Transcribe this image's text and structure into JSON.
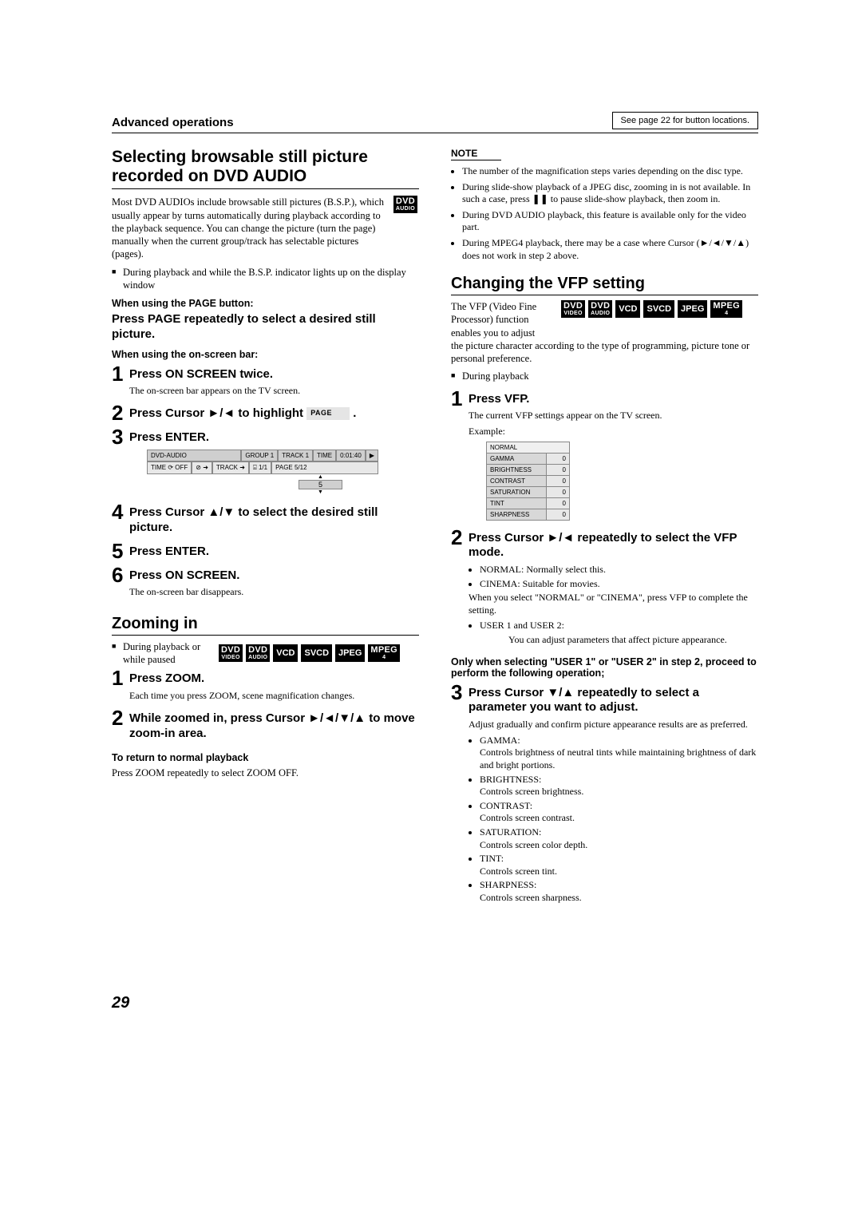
{
  "header": {
    "section_label": "Advanced operations",
    "button_ref": "See page 22 for button locations."
  },
  "left": {
    "h1": "Selecting browsable still picture recorded on DVD AUDIO",
    "badge_dvdaudio": {
      "top": "DVD",
      "bot": "AUDIO"
    },
    "intro": "Most DVD AUDIOs include browsable still pictures (B.S.P.), which usually appear by turns automatically during playback according to the playback sequence. You can change the picture (turn the page) manually when the current group/track has selectable pictures (pages).",
    "bullet1": "During playback and while the B.S.P. indicator lights up on the display window",
    "when_page": "When using the PAGE button:",
    "inst_page": "Press PAGE repeatedly to select a desired still picture.",
    "when_osb": "When using the on-screen bar:",
    "s1": {
      "t": "Press ON SCREEN twice.",
      "s": "The on-screen bar appears on the TV screen."
    },
    "s2": {
      "pre": "Press Cursor ►/◄ to highlight ",
      "page_badge": "PAGE",
      "post": "."
    },
    "s3": {
      "t": "Press ENTER."
    },
    "osd": {
      "r1": [
        "DVD-AUDIO",
        "GROUP 1",
        "TRACK 1",
        "TIME",
        "0:01:40",
        "▶"
      ],
      "r2": [
        "TIME ⟳ OFF",
        "⊘ ➜",
        "TRACK ➜",
        "⌻ 1/1",
        "PAGE 5/12"
      ],
      "picker_val": "5"
    },
    "s4": {
      "t": "Press Cursor ▲/▼ to select the desired still picture."
    },
    "s5": {
      "t": "Press ENTER."
    },
    "s6": {
      "t": "Press ON SCREEN.",
      "s": "The on-screen bar disappears."
    },
    "zoom_h": "Zooming in",
    "zoom_bullet": "During playback or while paused",
    "badges_row": [
      {
        "top": "DVD",
        "bot": "VIDEO"
      },
      {
        "top": "DVD",
        "bot": "AUDIO"
      },
      {
        "single": "VCD"
      },
      {
        "single": "SVCD"
      },
      {
        "single": "JPEG"
      },
      {
        "top": "MPEG",
        "bot": "4"
      }
    ],
    "z1": {
      "t": "Press ZOOM.",
      "s": "Each time you press ZOOM, scene magnification changes."
    },
    "z2": {
      "t": "While zoomed in, press Cursor ►/◄/▼/▲ to move zoom-in area."
    },
    "return_h": "To return to normal playback",
    "return_b": "Press ZOOM repeatedly to select ZOOM OFF."
  },
  "right": {
    "note_hdr": "NOTE",
    "notes": [
      "The number of the magnification steps varies depending on the disc type.",
      "During slide-show playback of a JPEG disc, zooming in is not available. In such a case, press ❚❚ to pause slide-show playback, then zoom in.",
      "During DVD AUDIO playback, this feature is available only for the video part.",
      "During MPEG4 playback, there may be a case where Cursor (►/◄/▼/▲) does not work in step 2 above."
    ],
    "vfp_h": "Changing the VFP setting",
    "vfp_intro": "The VFP (Video Fine Processor) function enables you to adjust the picture character according to the type of programming, picture tone or personal preference.",
    "vfp_intro_lead": "The VFP (Video Fine Processor) function enables you to adjust",
    "vfp_intro_tail": "the picture character according to the type of programming, picture tone or personal preference.",
    "badges_row": [
      {
        "top": "DVD",
        "bot": "VIDEO"
      },
      {
        "top": "DVD",
        "bot": "AUDIO"
      },
      {
        "single": "VCD"
      },
      {
        "single": "SVCD"
      },
      {
        "single": "JPEG"
      },
      {
        "top": "MPEG",
        "bot": "4"
      }
    ],
    "during": "During playback",
    "v1": {
      "t": "Press VFP.",
      "s": "The current VFP settings appear on the TV screen.",
      "ex": "Example:"
    },
    "vfp_table": {
      "hdr": "NORMAL",
      "rows": [
        [
          "GAMMA",
          "0"
        ],
        [
          "BRIGHTNESS",
          "0"
        ],
        [
          "CONTRAST",
          "0"
        ],
        [
          "SATURATION",
          "0"
        ],
        [
          "TINT",
          "0"
        ],
        [
          "SHARPNESS",
          "0"
        ]
      ]
    },
    "v2": {
      "t": "Press Cursor ►/◄ repeatedly to select the VFP mode.",
      "bullets": [
        "NORMAL: Normally select this.",
        "CINEMA:  Suitable for movies."
      ],
      "after1": "When you select \"NORMAL\" or \"CINEMA\", press VFP to complete the setting.",
      "bullets2": [
        "USER 1 and USER 2:"
      ],
      "after2": "You can adjust parameters that affect picture appearance."
    },
    "only_when": "Only when selecting \"USER 1\" or \"USER 2\" in step 2, proceed to perform the following operation;",
    "v3": {
      "t": "Press Cursor ▼/▲ repeatedly to select a parameter you want to adjust.",
      "s": "Adjust gradually and confirm picture appearance results are as preferred.",
      "params": [
        {
          "k": "GAMMA:",
          "d": "Controls brightness of neutral tints while maintaining brightness of dark and bright portions."
        },
        {
          "k": "BRIGHTNESS:",
          "d": "Controls screen brightness."
        },
        {
          "k": "CONTRAST:",
          "d": "Controls screen contrast."
        },
        {
          "k": "SATURATION:",
          "d": "Controls screen color depth."
        },
        {
          "k": "TINT:",
          "d": "Controls screen tint."
        },
        {
          "k": "SHARPNESS:",
          "d": "Controls screen sharpness."
        }
      ]
    }
  },
  "page_num": "29"
}
